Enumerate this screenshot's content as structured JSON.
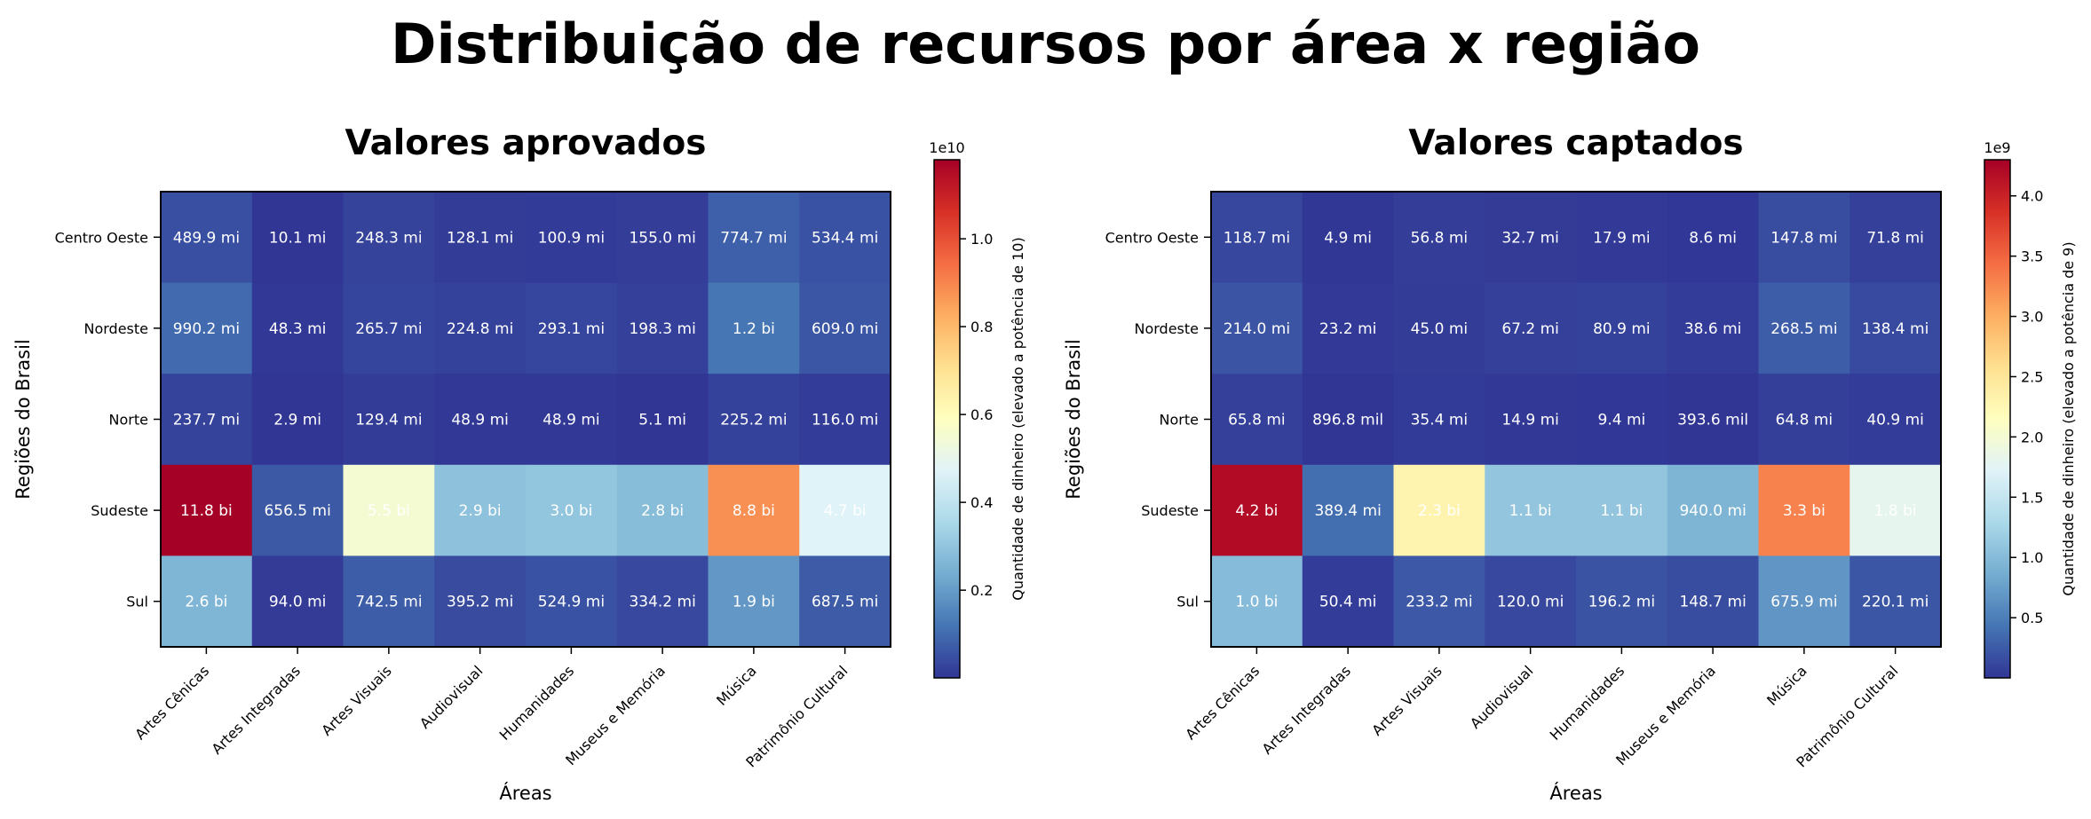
{
  "suptitle": "Distribuição de recursos por área x região",
  "chart_data": [
    {
      "type": "heatmap",
      "title": "Valores aprovados",
      "xlabel": "Áreas",
      "ylabel": "Regiões do Brasil",
      "x_categories": [
        "Artes Cênicas",
        "Artes Integradas",
        "Artes Visuais",
        "Audiovisual",
        "Humanidades",
        "Museus e Memória",
        "Música",
        "Patrimônio Cultural"
      ],
      "y_categories": [
        "Centro Oeste",
        "Nordeste",
        "Norte",
        "Sudeste",
        "Sul"
      ],
      "values": [
        [
          489900000,
          10100000,
          248300000,
          128100000,
          100900000,
          155000000,
          774700000,
          534400000
        ],
        [
          990200000,
          48300000,
          265700000,
          224800000,
          293100000,
          198300000,
          1200000000,
          609000000
        ],
        [
          237700000,
          2900000,
          129400000,
          48900000,
          48900000,
          5100000,
          225200000,
          116000000
        ],
        [
          11800000000,
          656500000,
          5500000000,
          2900000000,
          3000000000,
          2800000000,
          8800000000,
          4700000000
        ],
        [
          2600000000,
          94000000,
          742500000,
          395200000,
          524900000,
          334200000,
          1900000000,
          687500000
        ]
      ],
      "labels": [
        [
          "489.9 mi",
          "10.1 mi",
          "248.3 mi",
          "128.1 mi",
          "100.9 mi",
          "155.0 mi",
          "774.7 mi",
          "534.4 mi"
        ],
        [
          "990.2 mi",
          "48.3 mi",
          "265.7 mi",
          "224.8 mi",
          "293.1 mi",
          "198.3 mi",
          "1.2 bi",
          "609.0 mi"
        ],
        [
          "237.7 mi",
          "2.9 mi",
          "129.4 mi",
          "48.9 mi",
          "48.9 mi",
          "5.1 mi",
          "225.2 mi",
          "116.0 mi"
        ],
        [
          "11.8 bi",
          "656.5 mi",
          "5.5 bi",
          "2.9 bi",
          "3.0 bi",
          "2.8 bi",
          "8.8 bi",
          "4.7 bi"
        ],
        [
          "2.6 bi",
          "94.0 mi",
          "742.5 mi",
          "395.2 mi",
          "524.9 mi",
          "334.2 mi",
          "1.9 bi",
          "687.5 mi"
        ]
      ],
      "colormap": "RdYlBu_r",
      "vmin": 2900000,
      "vmax": 11800000000,
      "colorbar": {
        "label": "Quantidade de dinheiro (elevado a potência de 10)",
        "exponent": "1e10",
        "scale": 10000000000,
        "ticks": [
          0.2,
          0.4,
          0.6,
          0.8,
          1.0
        ],
        "tick_labels": [
          "0.2",
          "0.4",
          "0.6",
          "0.8",
          "1.0"
        ]
      }
    },
    {
      "type": "heatmap",
      "title": "Valores captados",
      "xlabel": "Áreas",
      "ylabel": "Regiões do Brasil",
      "x_categories": [
        "Artes Cênicas",
        "Artes Integradas",
        "Artes Visuais",
        "Audiovisual",
        "Humanidades",
        "Museus e Memória",
        "Música",
        "Patrimônio Cultural"
      ],
      "y_categories": [
        "Centro Oeste",
        "Nordeste",
        "Norte",
        "Sudeste",
        "Sul"
      ],
      "values": [
        [
          118700000,
          4900000,
          56800000,
          32700000,
          17900000,
          8600000,
          147800000,
          71800000
        ],
        [
          214000000,
          23200000,
          45000000,
          67200000,
          80900000,
          38600000,
          268500000,
          138400000
        ],
        [
          65800000,
          896800,
          35400000,
          14900000,
          9400000,
          393600,
          64800000,
          40900000
        ],
        [
          4200000000,
          389400000,
          2300000000,
          1100000000,
          1100000000,
          940000000,
          3300000000,
          1800000000
        ],
        [
          1000000000,
          50400000,
          233200000,
          120000000,
          196200000,
          148700000,
          675900000,
          220100000
        ]
      ],
      "labels": [
        [
          "118.7 mi",
          "4.9 mi",
          "56.8 mi",
          "32.7 mi",
          "17.9 mi",
          "8.6 mi",
          "147.8 mi",
          "71.8 mi"
        ],
        [
          "214.0 mi",
          "23.2 mi",
          "45.0 mi",
          "67.2 mi",
          "80.9 mi",
          "38.6 mi",
          "268.5 mi",
          "138.4 mi"
        ],
        [
          "65.8 mi",
          "896.8 mil",
          "35.4 mi",
          "14.9 mi",
          "9.4 mi",
          "393.6 mil",
          "64.8 mi",
          "40.9 mi"
        ],
        [
          "4.2 bi",
          "389.4 mi",
          "2.3 bi",
          "1.1 bi",
          "1.1 bi",
          "940.0 mi",
          "3.3 bi",
          "1.8 bi"
        ],
        [
          "1.0 bi",
          "50.4 mi",
          "233.2 mi",
          "120.0 mi",
          "196.2 mi",
          "148.7 mi",
          "675.9 mi",
          "220.1 mi"
        ]
      ],
      "colormap": "RdYlBu_r",
      "vmin": 393600,
      "vmax": 4300000000,
      "colorbar": {
        "label": "Quantidade de dinheiro (elevado a potência de 9)",
        "exponent": "1e9",
        "scale": 1000000000,
        "ticks": [
          0.5,
          1.0,
          1.5,
          2.0,
          2.5,
          3.0,
          3.5,
          4.0
        ],
        "tick_labels": [
          "0.5",
          "1.0",
          "1.5",
          "2.0",
          "2.5",
          "3.0",
          "3.5",
          "4.0"
        ]
      }
    }
  ]
}
